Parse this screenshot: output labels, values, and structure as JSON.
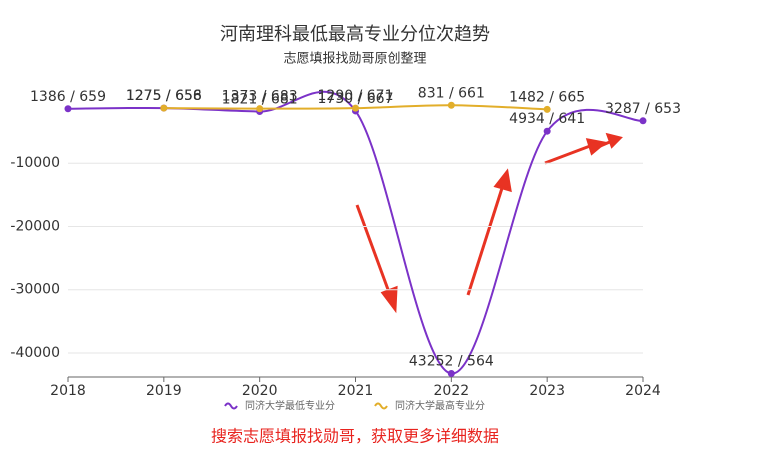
{
  "chart_data": {
    "type": "line",
    "title": "河南理科最低最高专业分位次趋势",
    "subtitle": "志愿填报找勋哥原创整理",
    "footer": "搜索志愿填报找勋哥，获取更多详细数据",
    "categories": [
      "2018",
      "2019",
      "2020",
      "2021",
      "2022",
      "2023",
      "2024"
    ],
    "series": [
      {
        "name": "同济大学最低专业分",
        "color": "#7b32c8",
        "values": [
          -1386,
          -1275,
          -1821,
          -1730,
          -43252,
          -4934,
          -3287
        ],
        "value_labels": [
          "1386 / 659",
          "1275 / 656",
          "1821 / 681",
          "1730 / 667",
          "43252 / 564",
          "4934 / 641",
          "3287 / 653"
        ]
      },
      {
        "name": "同济大学最高专业分",
        "color": "#e2ae2a",
        "values": [
          null,
          -1275,
          -1373,
          -1290,
          -831,
          -1482,
          null
        ],
        "value_labels": [
          null,
          "1275 / 658",
          "1373 / 683",
          "1290 / 671",
          "831 / 661",
          "1482 / 665",
          null
        ]
      }
    ],
    "ylim": [
      -43800,
      0
    ],
    "yticks": [
      -40000,
      -30000,
      -20000,
      -10000
    ],
    "grid": true,
    "smooth": true,
    "legend": "bottom"
  }
}
